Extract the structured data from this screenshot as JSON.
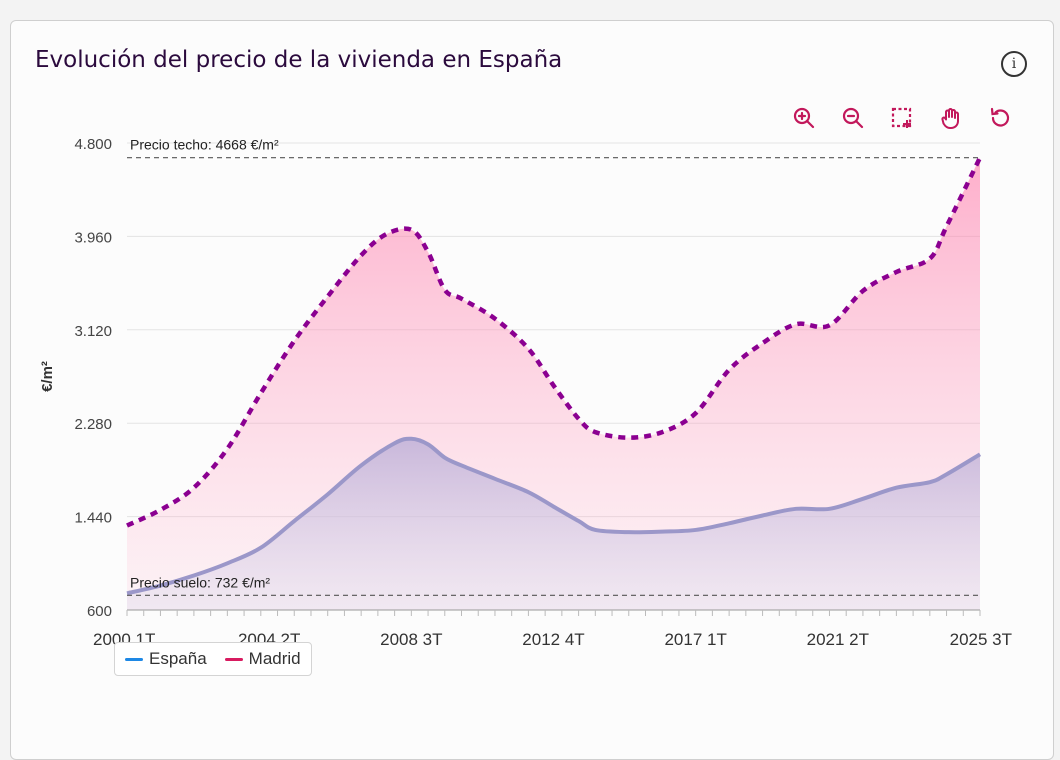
{
  "title": "Evolución del precio de la vivienda en España",
  "info_icon": "info-icon",
  "toolbar": [
    {
      "name": "zoom-in-button",
      "icon": "zoom-in-icon"
    },
    {
      "name": "zoom-out-button",
      "icon": "zoom-out-icon"
    },
    {
      "name": "select-zoom-button",
      "icon": "select-area-icon"
    },
    {
      "name": "pan-button",
      "icon": "hand-icon"
    },
    {
      "name": "reset-button",
      "icon": "reset-icon"
    }
  ],
  "colors": {
    "accent": "#c2185b",
    "espana_line": "#9b97c9",
    "madrid_line": "#8b0091",
    "madrid_fill": "#ff6fa3",
    "espana_fill": "#b7abd6",
    "legend_espana": "#1e88e5",
    "legend_madrid": "#d81b60"
  },
  "chart_data": {
    "type": "area",
    "ylabel": "€/m²",
    "ylim": [
      600,
      4800
    ],
    "yticks": [
      "4.800",
      "3.960",
      "3.120",
      "2.280",
      "1.440",
      "600"
    ],
    "ytick_values": [
      4800,
      3960,
      3120,
      2280,
      1440,
      600
    ],
    "xlim": [
      "2000 1T",
      "2025 3T"
    ],
    "xticks": [
      "2000 1T",
      "2004 2T",
      "2008 3T",
      "2012 4T",
      "2017 1T",
      "2021 2T",
      "2025 3T"
    ],
    "grid": true,
    "legend_position": "bottom-left",
    "annotations": [
      {
        "text": "Precio techo: 4668 €/m²",
        "value": 4668
      },
      {
        "text": "Precio suelo: 732 €/m²",
        "value": 732
      }
    ],
    "series": [
      {
        "name": "España",
        "points": [
          [
            "2000 1T",
            750
          ],
          [
            "2001 1T",
            820
          ],
          [
            "2002 1T",
            910
          ],
          [
            "2003 1T",
            1020
          ],
          [
            "2004 1T",
            1160
          ],
          [
            "2005 1T",
            1400
          ],
          [
            "2006 1T",
            1640
          ],
          [
            "2007 1T",
            1900
          ],
          [
            "2008 1T",
            2100
          ],
          [
            "2008 3T",
            2140
          ],
          [
            "2009 1T",
            2090
          ],
          [
            "2009 3T",
            1970
          ],
          [
            "2010 1T",
            1900
          ],
          [
            "2011 1T",
            1780
          ],
          [
            "2012 1T",
            1660
          ],
          [
            "2012 4T",
            1530
          ],
          [
            "2013 3T",
            1400
          ],
          [
            "2014 1T",
            1320
          ],
          [
            "2015 1T",
            1300
          ],
          [
            "2016 1T",
            1305
          ],
          [
            "2017 1T",
            1320
          ],
          [
            "2018 1T",
            1380
          ],
          [
            "2019 1T",
            1450
          ],
          [
            "2020 1T",
            1510
          ],
          [
            "2021 1T",
            1510
          ],
          [
            "2022 1T",
            1600
          ],
          [
            "2023 1T",
            1700
          ],
          [
            "2024 1T",
            1750
          ],
          [
            "2024 3T",
            1820
          ],
          [
            "2025 3T",
            2000
          ]
        ]
      },
      {
        "name": "Madrid",
        "points": [
          [
            "2000 1T",
            1360
          ],
          [
            "2001 1T",
            1500
          ],
          [
            "2002 1T",
            1700
          ],
          [
            "2003 1T",
            2050
          ],
          [
            "2004 1T",
            2550
          ],
          [
            "2005 1T",
            3020
          ],
          [
            "2006 1T",
            3420
          ],
          [
            "2007 1T",
            3790
          ],
          [
            "2007 4T",
            3980
          ],
          [
            "2008 3T",
            4020
          ],
          [
            "2009 1T",
            3820
          ],
          [
            "2009 3T",
            3480
          ],
          [
            "2010 1T",
            3400
          ],
          [
            "2011 1T",
            3220
          ],
          [
            "2012 1T",
            2950
          ],
          [
            "2012 4T",
            2620
          ],
          [
            "2013 3T",
            2320
          ],
          [
            "2014 1T",
            2200
          ],
          [
            "2015 1T",
            2150
          ],
          [
            "2016 1T",
            2200
          ],
          [
            "2017 1T",
            2370
          ],
          [
            "2018 1T",
            2760
          ],
          [
            "2019 1T",
            3000
          ],
          [
            "2020 1T",
            3170
          ],
          [
            "2021 1T",
            3160
          ],
          [
            "2022 1T",
            3470
          ],
          [
            "2023 1T",
            3640
          ],
          [
            "2024 1T",
            3760
          ],
          [
            "2024 3T",
            4050
          ],
          [
            "2025 3T",
            4668
          ]
        ]
      }
    ]
  }
}
